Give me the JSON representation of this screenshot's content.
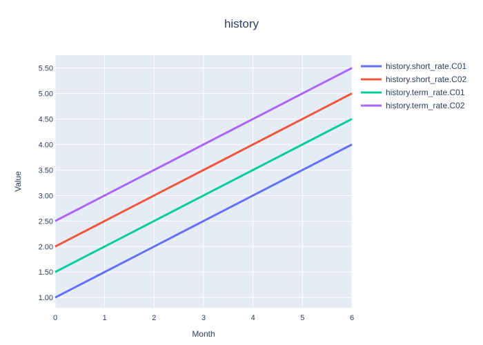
{
  "chart_data": {
    "type": "line",
    "title": "history",
    "xlabel": "Month",
    "ylabel": "Value",
    "x": [
      0,
      1,
      2,
      3,
      4,
      5,
      6
    ],
    "xlim": [
      0,
      6
    ],
    "ylim": [
      0.8,
      5.75
    ],
    "xticks": [
      0,
      1,
      2,
      3,
      4,
      5,
      6
    ],
    "yticks": [
      1.0,
      1.5,
      2.0,
      2.5,
      3.0,
      3.5,
      4.0,
      4.5,
      5.0,
      5.5
    ],
    "ytick_labels": [
      "1.00",
      "1.50",
      "2.00",
      "2.50",
      "3.00",
      "3.50",
      "4.00",
      "4.50",
      "5.00",
      "5.50"
    ],
    "grid": true,
    "legend_position": "top-right-outside",
    "plot_bgcolor": "#e5ecf6",
    "series": [
      {
        "name": "history.short_rate.C01",
        "color": "#636efa",
        "values": [
          1.0,
          1.5,
          2.0,
          2.5,
          3.0,
          3.5,
          4.0
        ]
      },
      {
        "name": "history.short_rate.C02",
        "color": "#ef553b",
        "values": [
          2.0,
          2.5,
          3.0,
          3.5,
          4.0,
          4.5,
          5.0
        ]
      },
      {
        "name": "history.term_rate.C01",
        "color": "#00cc96",
        "values": [
          1.5,
          2.0,
          2.5,
          3.0,
          3.5,
          4.0,
          4.5
        ]
      },
      {
        "name": "history.term_rate.C02",
        "color": "#ab63fa",
        "values": [
          2.5,
          3.0,
          3.5,
          4.0,
          4.5,
          5.0,
          5.5
        ]
      }
    ]
  }
}
